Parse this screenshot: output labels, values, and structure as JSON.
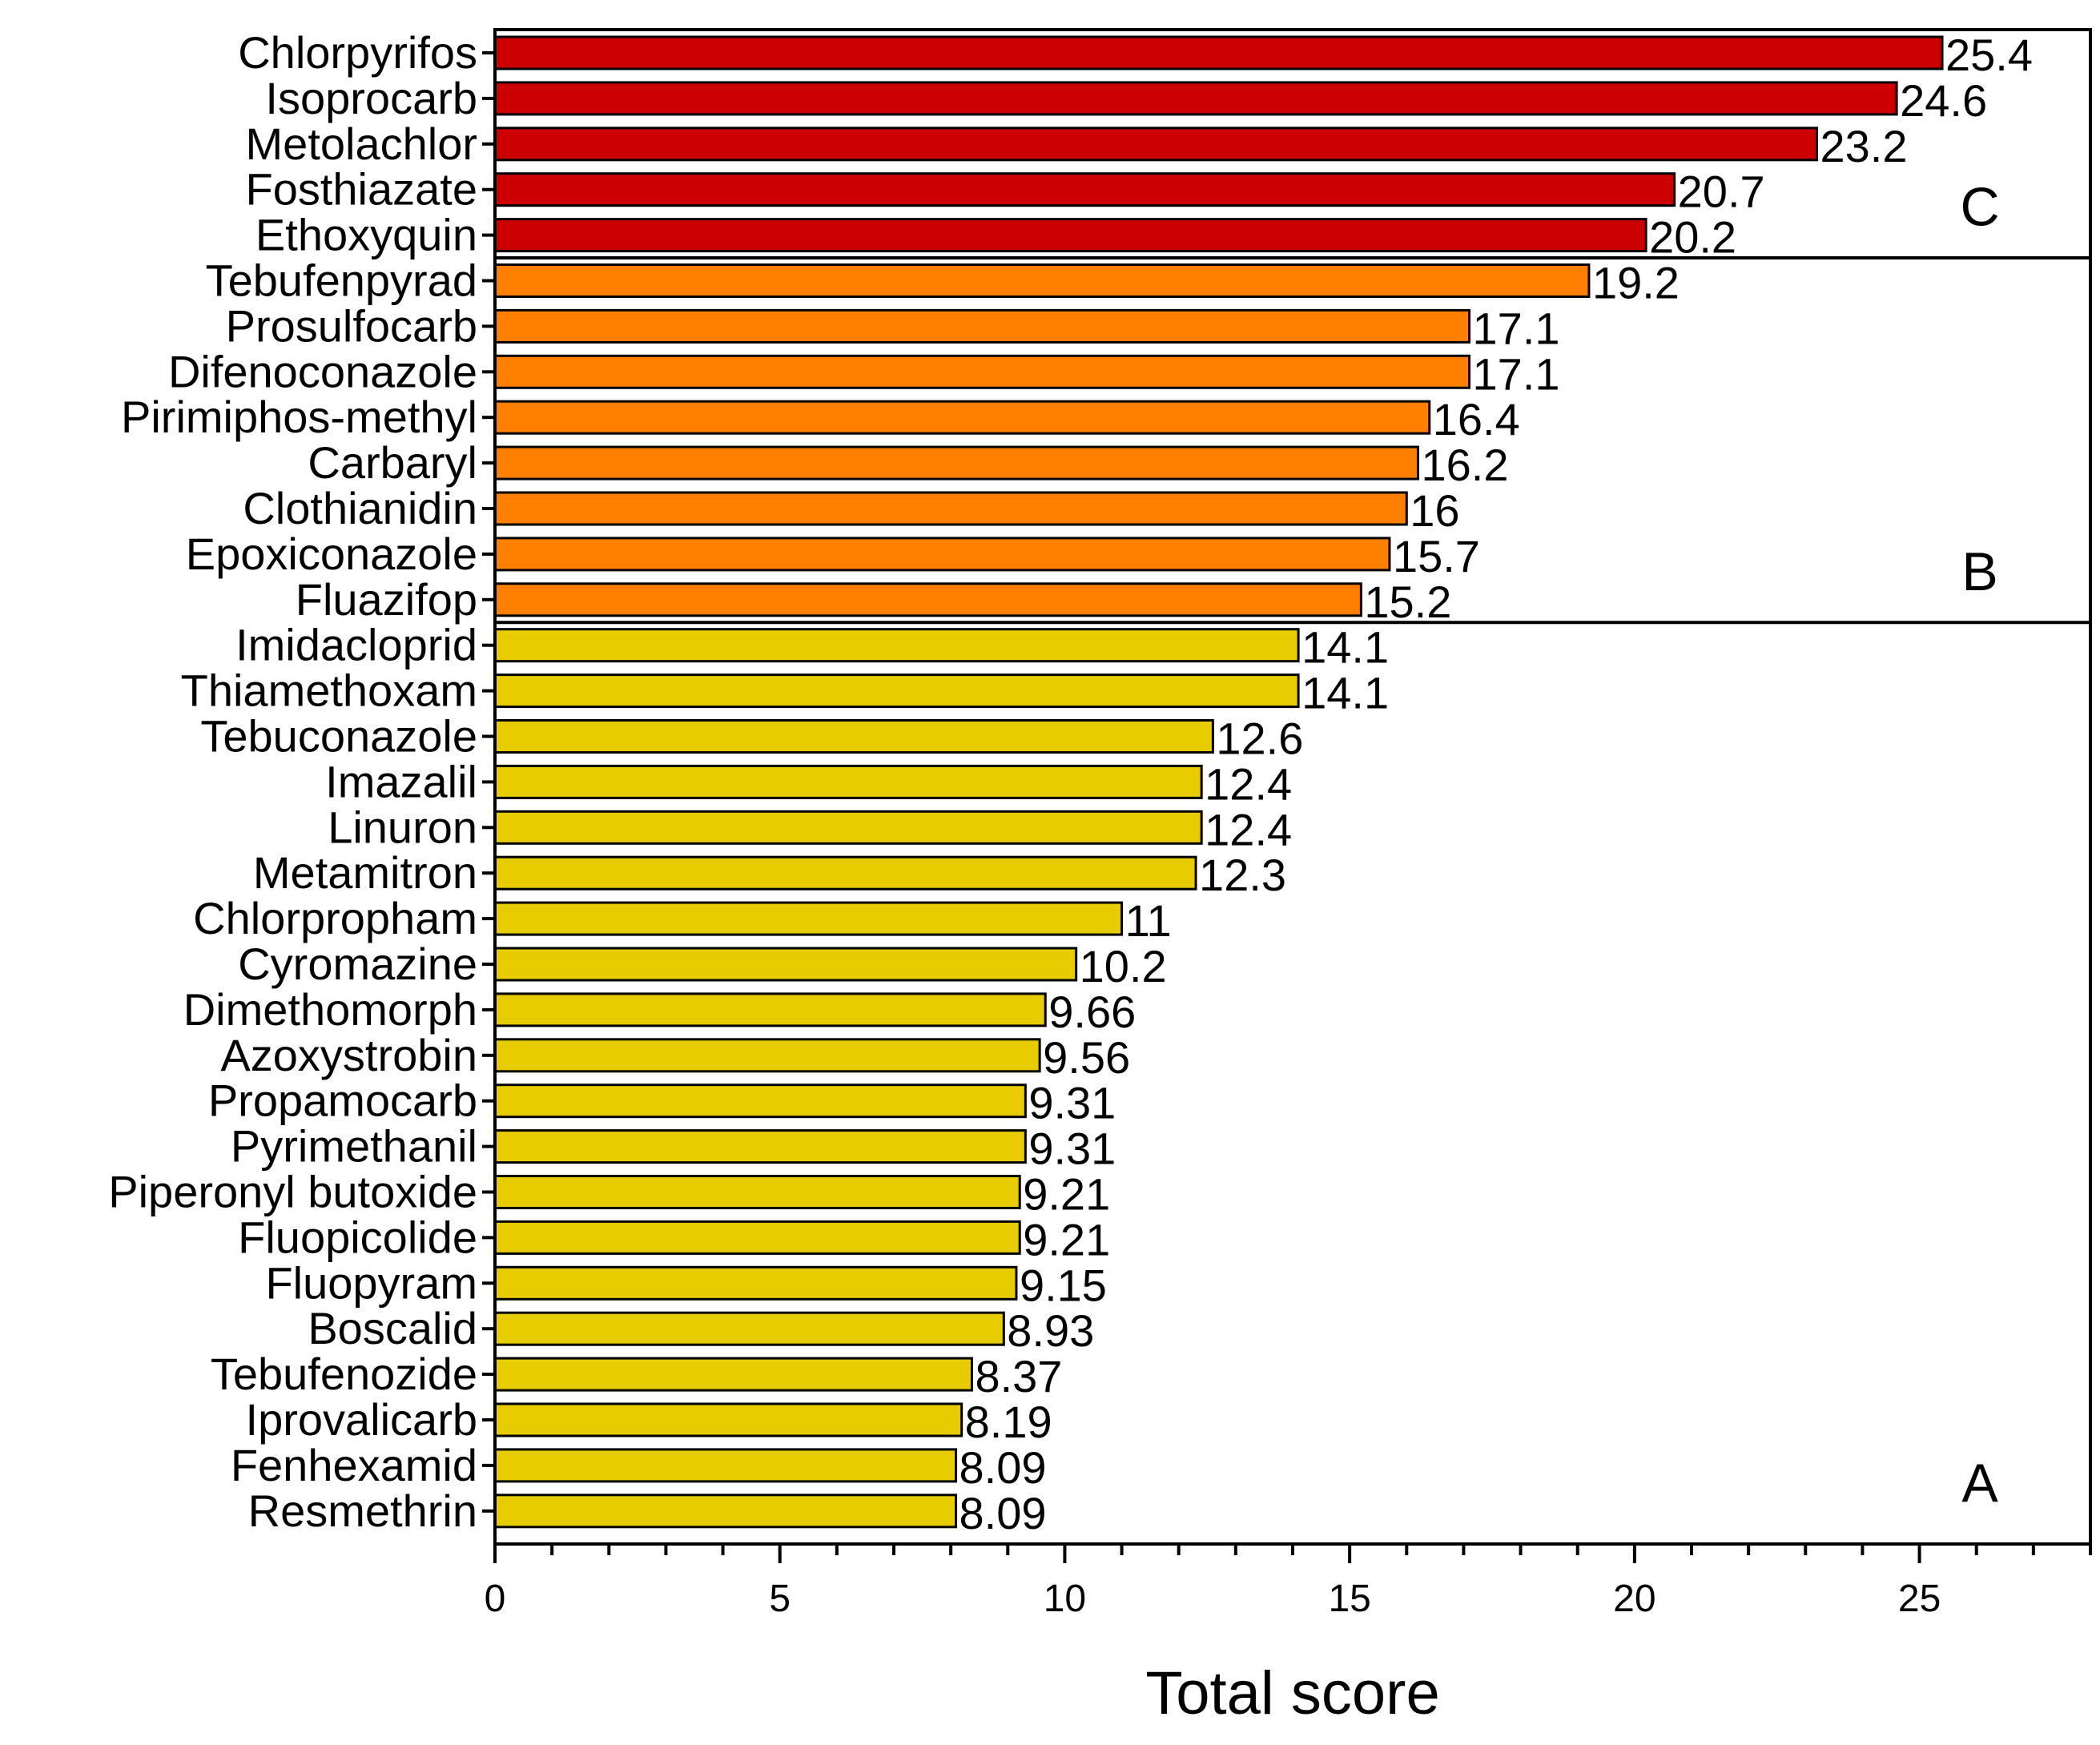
{
  "chart_data": {
    "type": "bar",
    "orientation": "horizontal",
    "title": "",
    "xlabel": "Total score",
    "ylabel": "",
    "xlim": [
      0,
      28
    ],
    "major_ticks": [
      0,
      5,
      10,
      15,
      20,
      25
    ],
    "minor_tick_step": 1,
    "grid": false,
    "colors": {
      "C": "#cc0000",
      "B": "#ff8000",
      "A": "#e6cc00"
    },
    "groups": [
      {
        "name": "C",
        "start_index": 0,
        "end_index": 4
      },
      {
        "name": "B",
        "start_index": 5,
        "end_index": 12
      },
      {
        "name": "A",
        "start_index": 13,
        "end_index": 32
      }
    ],
    "categories": [
      "Chlorpyrifos",
      "Isoprocarb",
      "Metolachlor ",
      "Fosthiazate",
      "Ethoxyquin",
      "Tebufenpyrad",
      "Prosulfocarb",
      "Difenoconazole",
      "Pirimiphos-methyl",
      "Carbaryl",
      "Clothianidin",
      "Epoxiconazole ",
      "Fluazifop",
      "Imidacloprid",
      "Thiamethoxam",
      "Tebuconazole",
      "Imazalil",
      "Linuron",
      "Metamitron",
      "Chlorpropham",
      "Cyromazine",
      "Dimethomorph",
      "Azoxystrobin",
      "Propamocarb",
      "Pyrimethanil",
      "Piperonyl butoxide",
      "Fluopicolide",
      "Fluopyram",
      "Boscalid",
      "Tebufenozide",
      "Iprovalicarb",
      "Fenhexamid",
      "Resmethrin"
    ],
    "values": [
      25.4,
      24.6,
      23.2,
      20.7,
      20.2,
      19.2,
      17.1,
      17.1,
      16.4,
      16.2,
      16,
      15.7,
      15.2,
      14.1,
      14.1,
      12.6,
      12.4,
      12.4,
      12.3,
      11,
      10.2,
      9.66,
      9.56,
      9.31,
      9.31,
      9.21,
      9.21,
      9.15,
      8.93,
      8.37,
      8.19,
      8.09,
      8.09
    ],
    "value_labels": [
      "25.4",
      "24.6",
      "23.2",
      "20.7",
      "20.2",
      "19.2",
      "17.1",
      "17.1",
      "16.4",
      "16.2",
      "16",
      "15.7",
      "15.2",
      "14.1",
      "14.1",
      "12.6",
      "12.4",
      "12.4",
      "12.3",
      "11",
      "10.2",
      "9.66",
      "9.56",
      "9.31",
      "9.31",
      "9.21",
      "9.21",
      "9.15",
      "8.93",
      "8.37",
      "8.19",
      "8.09",
      "8.09"
    ]
  }
}
